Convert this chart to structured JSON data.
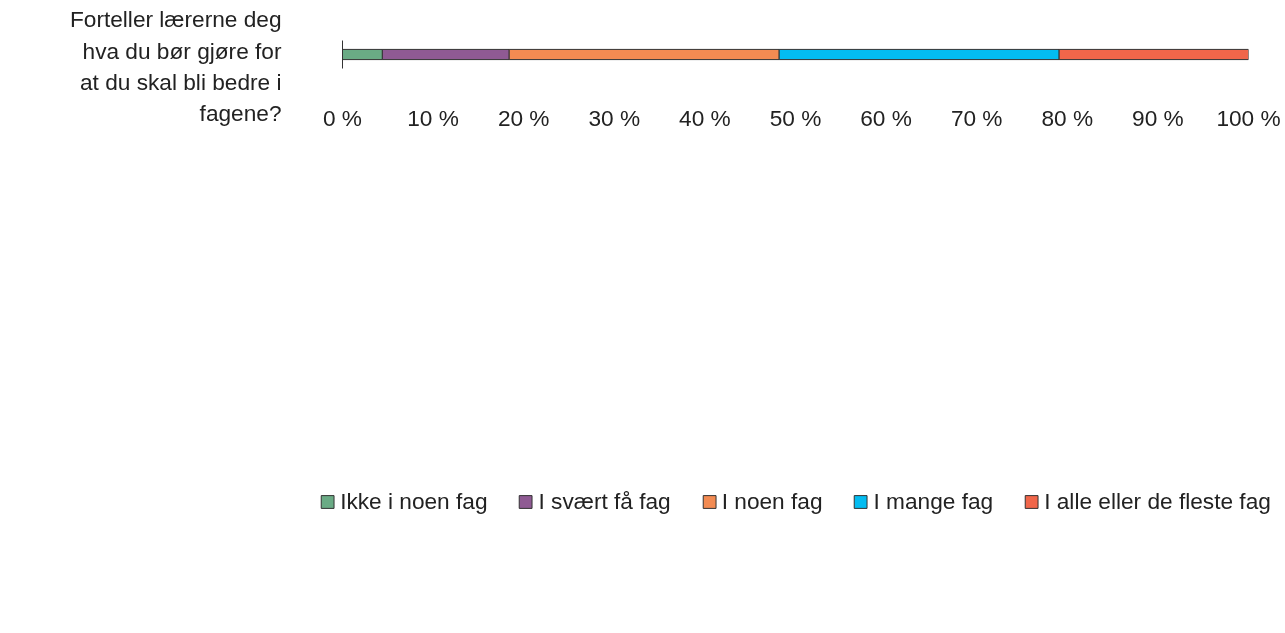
{
  "chart_data": {
    "type": "bar",
    "orientation": "horizontal",
    "stacked": true,
    "categories": [
      "Forteller lærerne deg hva du bør gjøre for at du skal bli bedre i fagene?"
    ],
    "series": [
      {
        "name": "Ikke i noen fag",
        "color": "#6aab85",
        "values": [
          4.4
        ]
      },
      {
        "name": "I svært få fag",
        "color": "#8f5a93",
        "values": [
          14.0
        ]
      },
      {
        "name": "I noen fag",
        "color": "#f38b52",
        "values": [
          29.8
        ]
      },
      {
        "name": "I mange fag",
        "color": "#03bcf1",
        "values": [
          30.9
        ]
      },
      {
        "name": "I alle eller de fleste fag",
        "color": "#f0664a",
        "values": [
          20.9
        ]
      }
    ],
    "xlim": [
      0,
      100
    ],
    "xticks": [
      {
        "value": 0,
        "label": "0 %"
      },
      {
        "value": 10,
        "label": "10 %"
      },
      {
        "value": 20,
        "label": "20 %"
      },
      {
        "value": 30,
        "label": "30 %"
      },
      {
        "value": 40,
        "label": "40 %"
      },
      {
        "value": 50,
        "label": "50 %"
      },
      {
        "value": 60,
        "label": "60 %"
      },
      {
        "value": 70,
        "label": "70 %"
      },
      {
        "value": 80,
        "label": "80 %"
      },
      {
        "value": 90,
        "label": "90 %"
      },
      {
        "value": 100,
        "label": "100 %"
      }
    ],
    "grid": false,
    "legend": "bottom"
  }
}
